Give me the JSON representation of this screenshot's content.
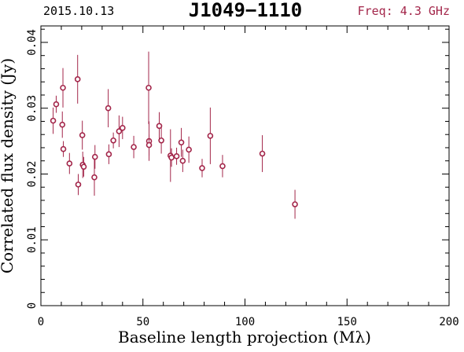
{
  "header": {
    "date": "2015.10.13",
    "source": "J1049−1110",
    "frequency": "Freq: 4.3 GHz"
  },
  "colors": {
    "data": "#a3264a",
    "axis": "#000000",
    "background": "#ffffff"
  },
  "chart_data": {
    "type": "scatter",
    "title": "J1049−1110",
    "xlabel": "Baseline length projection (Mλ)",
    "ylabel": "Correlated flux density (Jy)",
    "xlim": [
      0,
      200
    ],
    "ylim": [
      0,
      0.0425
    ],
    "x_ticks": [
      0,
      50,
      100,
      150,
      200
    ],
    "x_tick_labels": [
      "0",
      "50",
      "100",
      "150",
      "200"
    ],
    "y_ticks": [
      0,
      0.01,
      0.02,
      0.03,
      0.04
    ],
    "y_tick_labels": [
      "0",
      "0.01",
      "0.02",
      "0.03",
      "0.04"
    ],
    "grid": false,
    "error_bars": true,
    "points": [
      {
        "x": 6.0,
        "y": 0.0281,
        "err": 0.002
      },
      {
        "x": 7.5,
        "y": 0.0306,
        "err": 0.0013
      },
      {
        "x": 10.8,
        "y": 0.0331,
        "err": 0.003
      },
      {
        "x": 10.5,
        "y": 0.0275,
        "err": 0.002
      },
      {
        "x": 11.0,
        "y": 0.0238,
        "err": 0.0012
      },
      {
        "x": 14.0,
        "y": 0.0216,
        "err": 0.0016
      },
      {
        "x": 18.0,
        "y": 0.0344,
        "err": 0.0037
      },
      {
        "x": 18.3,
        "y": 0.0184,
        "err": 0.0016
      },
      {
        "x": 20.3,
        "y": 0.0259,
        "err": 0.0022
      },
      {
        "x": 20.5,
        "y": 0.0214,
        "err": 0.002
      },
      {
        "x": 21.0,
        "y": 0.0211,
        "err": 0.0015
      },
      {
        "x": 26.2,
        "y": 0.0195,
        "err": 0.0028
      },
      {
        "x": 26.5,
        "y": 0.0226,
        "err": 0.0018
      },
      {
        "x": 33.0,
        "y": 0.03,
        "err": 0.0029
      },
      {
        "x": 33.3,
        "y": 0.023,
        "err": 0.0015
      },
      {
        "x": 35.5,
        "y": 0.0251,
        "err": 0.0012
      },
      {
        "x": 38.3,
        "y": 0.0265,
        "err": 0.0024
      },
      {
        "x": 40.0,
        "y": 0.027,
        "err": 0.0017
      },
      {
        "x": 45.5,
        "y": 0.0241,
        "err": 0.0017
      },
      {
        "x": 52.8,
        "y": 0.0331,
        "err": 0.0055
      },
      {
        "x": 53.0,
        "y": 0.025,
        "err": 0.003
      },
      {
        "x": 53.0,
        "y": 0.0244,
        "err": 0.0016
      },
      {
        "x": 58.0,
        "y": 0.0273,
        "err": 0.0021
      },
      {
        "x": 59.0,
        "y": 0.0251,
        "err": 0.002
      },
      {
        "x": 63.5,
        "y": 0.0228,
        "err": 0.004
      },
      {
        "x": 64.0,
        "y": 0.0225,
        "err": 0.0014
      },
      {
        "x": 66.5,
        "y": 0.0227,
        "err": 0.0013
      },
      {
        "x": 68.8,
        "y": 0.0248,
        "err": 0.0022
      },
      {
        "x": 69.5,
        "y": 0.022,
        "err": 0.0017
      },
      {
        "x": 72.5,
        "y": 0.0237,
        "err": 0.002
      },
      {
        "x": 79.0,
        "y": 0.0209,
        "err": 0.0014
      },
      {
        "x": 83.0,
        "y": 0.0258,
        "err": 0.0043
      },
      {
        "x": 89.0,
        "y": 0.0212,
        "err": 0.0017
      },
      {
        "x": 108.5,
        "y": 0.0231,
        "err": 0.0028
      },
      {
        "x": 124.5,
        "y": 0.0154,
        "err": 0.0022
      }
    ]
  }
}
